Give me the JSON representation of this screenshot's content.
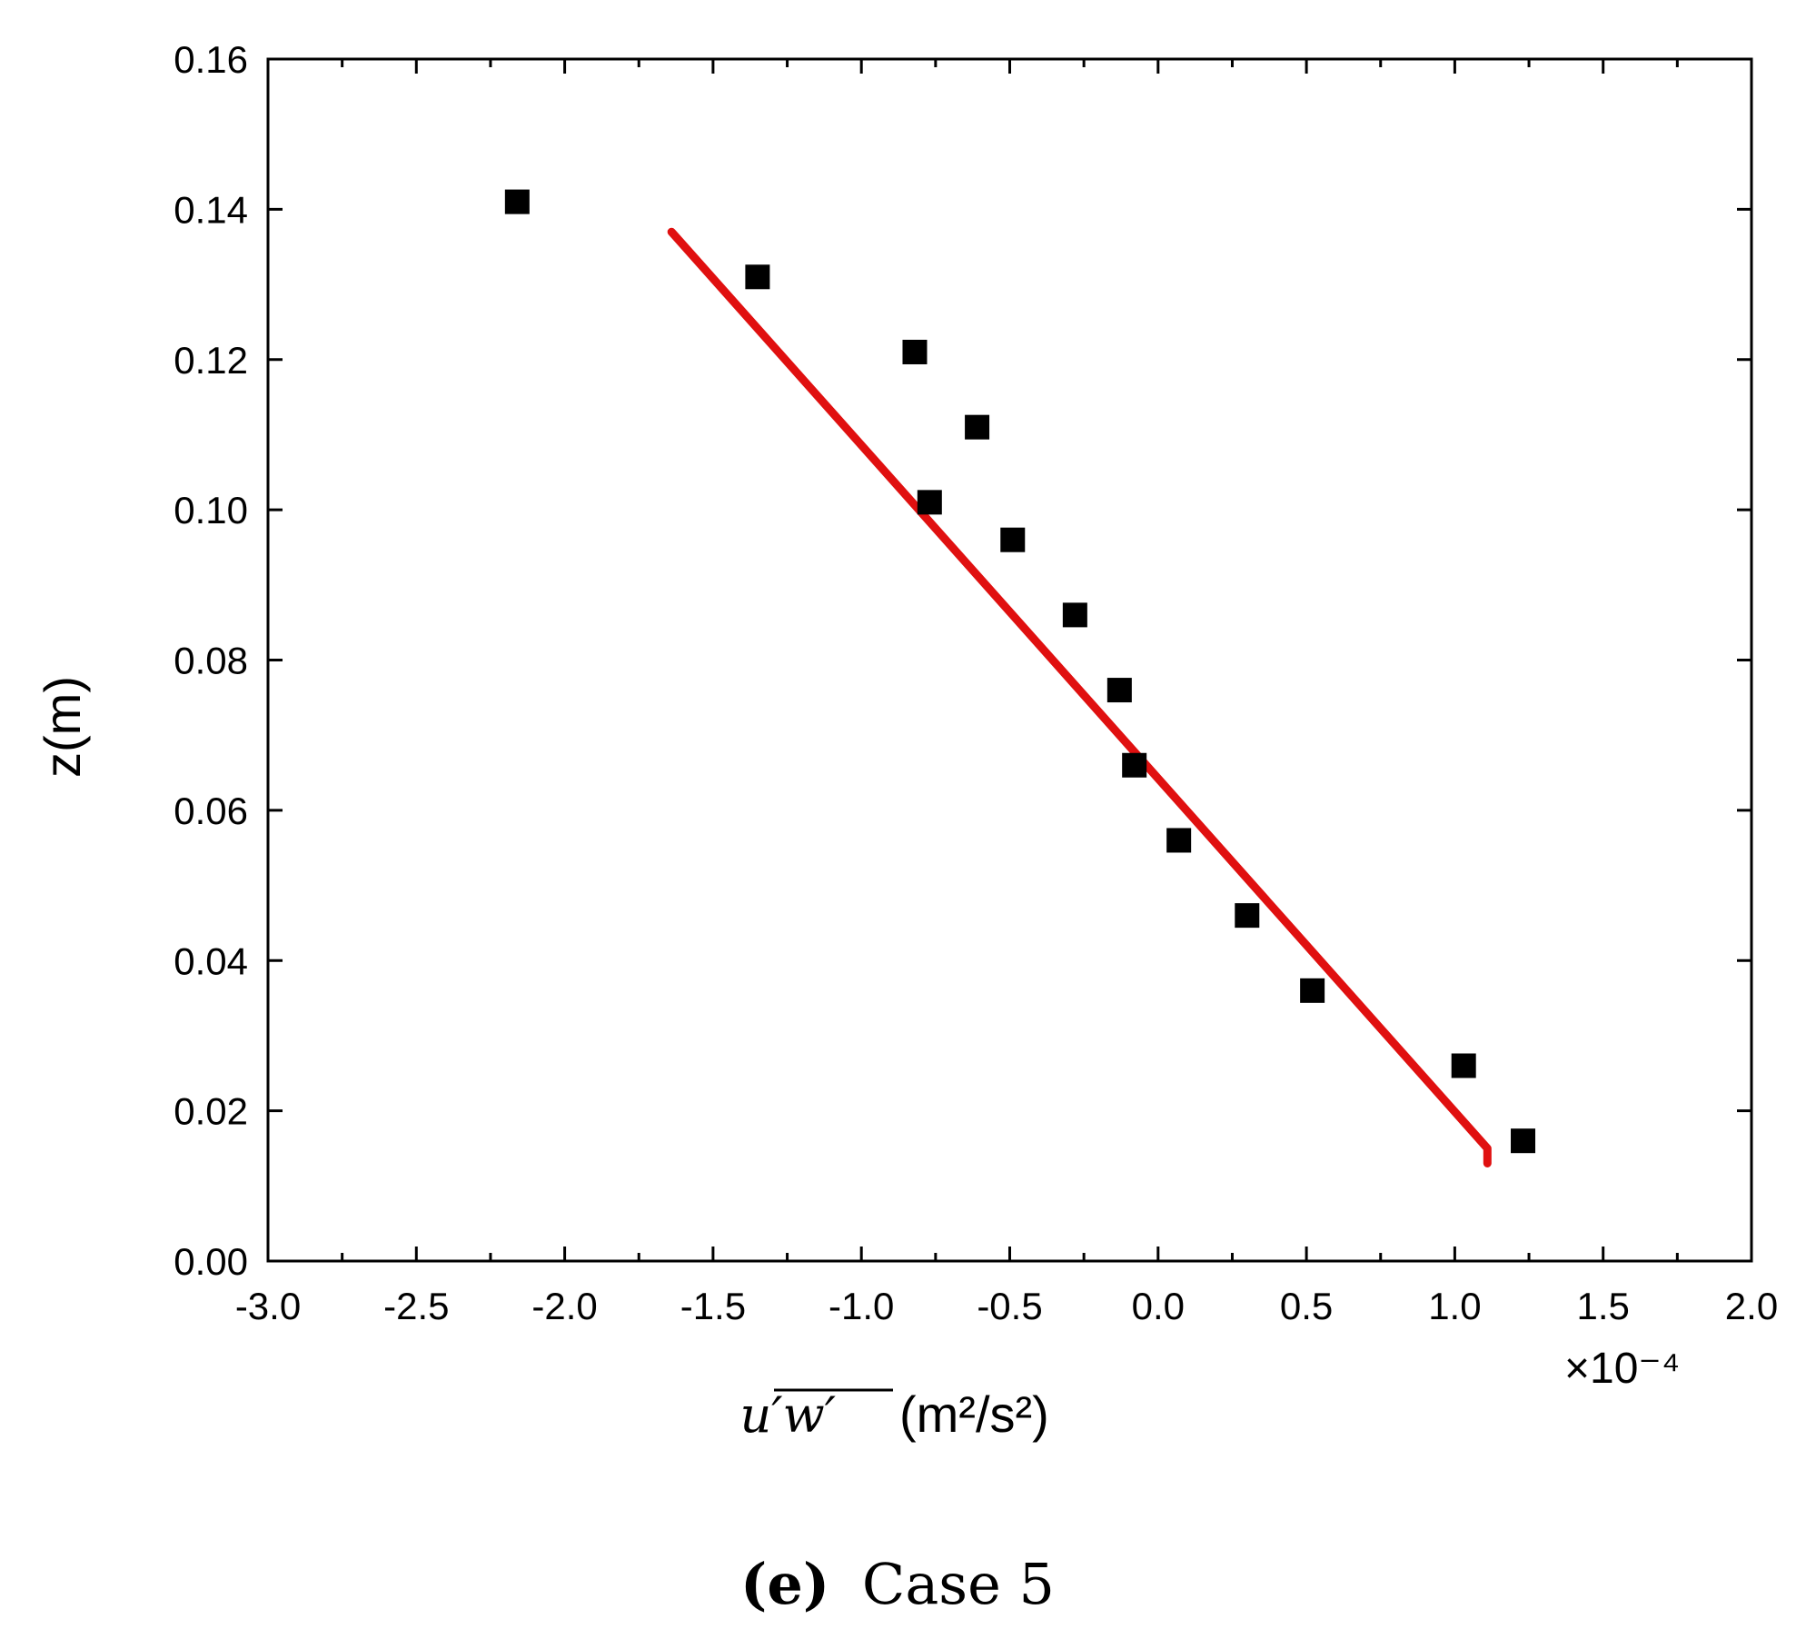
{
  "chart_data": {
    "type": "scatter",
    "ylabel": "z(m)",
    "xlabel_var": "u′w′",
    "xlabel_units": "(m²/s²)",
    "x_multiplier": "×10⁻⁴",
    "caption_letter": "(e)",
    "caption_text": "Case 5",
    "xlim": [
      -3.0,
      2.0
    ],
    "ylim": [
      0.0,
      0.16
    ],
    "x_ticks": [
      "-3.0",
      "-2.5",
      "-2.0",
      "-1.5",
      "-1.0",
      "-0.5",
      "0.0",
      "0.5",
      "1.0",
      "1.5",
      "2.0"
    ],
    "y_ticks": [
      "0.00",
      "0.02",
      "0.04",
      "0.06",
      "0.08",
      "0.10",
      "0.12",
      "0.14",
      "0.16"
    ],
    "points": [
      {
        "x": -2.16,
        "y": 0.141
      },
      {
        "x": -1.35,
        "y": 0.131
      },
      {
        "x": -0.82,
        "y": 0.121
      },
      {
        "x": -0.61,
        "y": 0.111
      },
      {
        "x": -0.77,
        "y": 0.101
      },
      {
        "x": -0.49,
        "y": 0.096
      },
      {
        "x": -0.28,
        "y": 0.086
      },
      {
        "x": -0.13,
        "y": 0.076
      },
      {
        "x": -0.08,
        "y": 0.066
      },
      {
        "x": 0.07,
        "y": 0.056
      },
      {
        "x": 0.3,
        "y": 0.046
      },
      {
        "x": 0.52,
        "y": 0.036
      },
      {
        "x": 1.03,
        "y": 0.026
      },
      {
        "x": 1.23,
        "y": 0.016
      }
    ],
    "fit_line": [
      {
        "x": -1.64,
        "y": 0.137
      },
      {
        "x": 1.11,
        "y": 0.015
      },
      {
        "x": 1.11,
        "y": 0.013
      }
    ],
    "marker_color": "#000000",
    "line_color": "#e01010",
    "grid": false
  }
}
